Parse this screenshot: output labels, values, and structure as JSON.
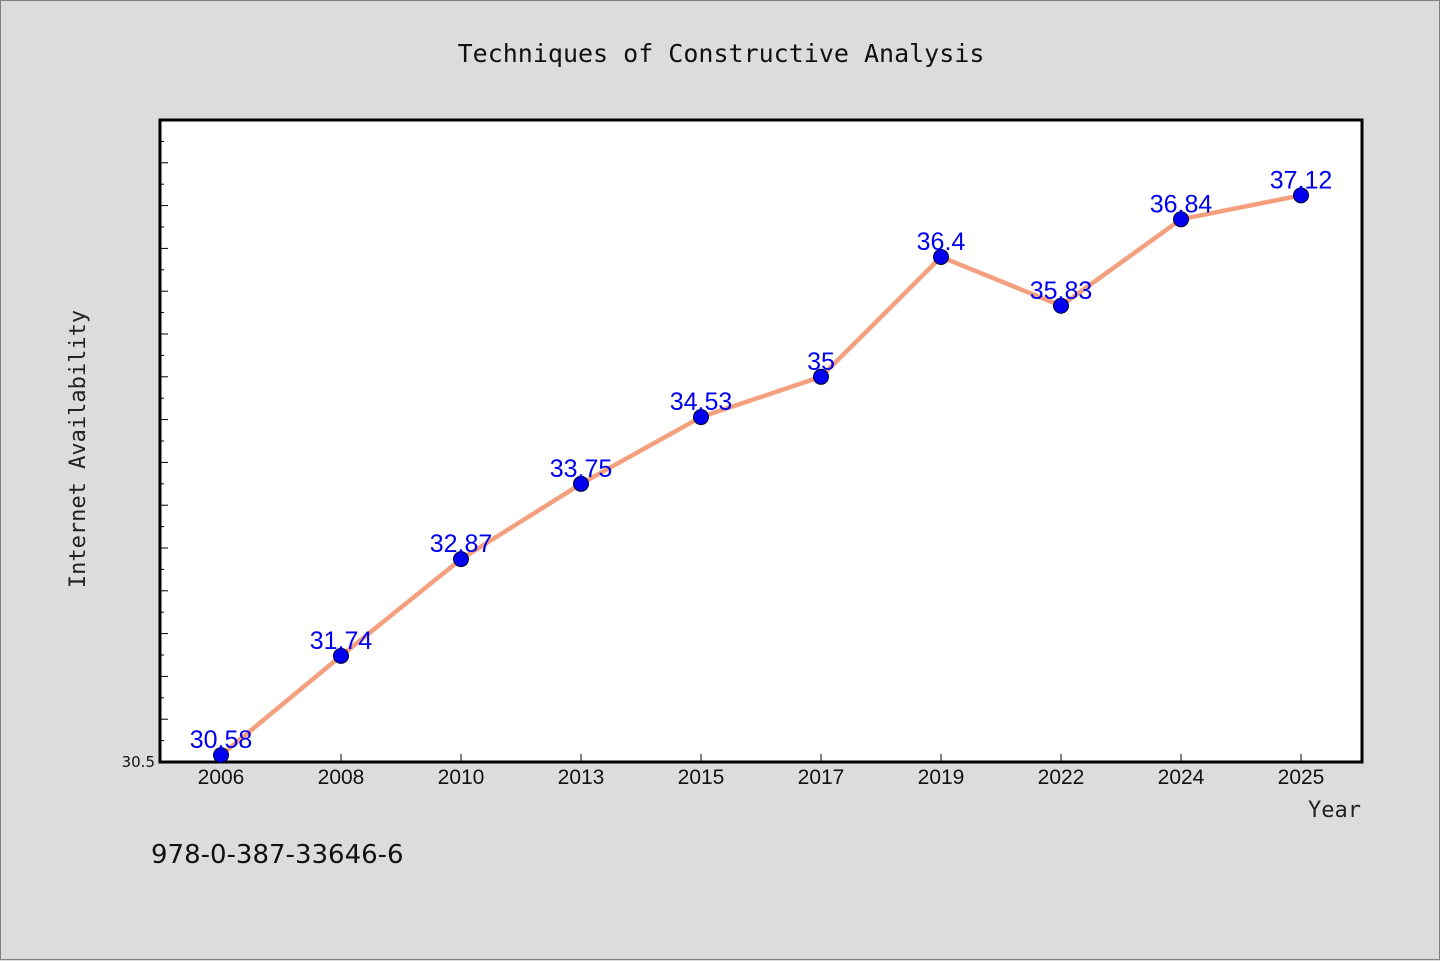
{
  "chart_data": {
    "type": "line",
    "title": "Techniques of Constructive Analysis",
    "xlabel": "Year",
    "ylabel": "Internet Availability",
    "categories": [
      "2006",
      "2008",
      "2010",
      "2013",
      "2015",
      "2017",
      "2019",
      "2022",
      "2024",
      "2025"
    ],
    "series": [
      {
        "values": [
          30.58,
          31.74,
          32.87,
          33.75,
          34.53,
          35,
          36.4,
          35.83,
          36.84,
          37.12
        ]
      }
    ],
    "data_labels": [
      "30.58",
      "31.74",
      "32.87",
      "33.75",
      "34.53",
      "35",
      "36.4",
      "35.83",
      "36.84",
      "37.12"
    ],
    "ylim": [
      30.5,
      38.0
    ],
    "yticks": [
      {
        "value": 30.5,
        "label": "30.5"
      }
    ],
    "line_color": "#f4a07f",
    "marker_color": "#0000ee",
    "label_color": "#0000ee",
    "grid": false
  },
  "footer_text": "978-0-387-33646-6"
}
